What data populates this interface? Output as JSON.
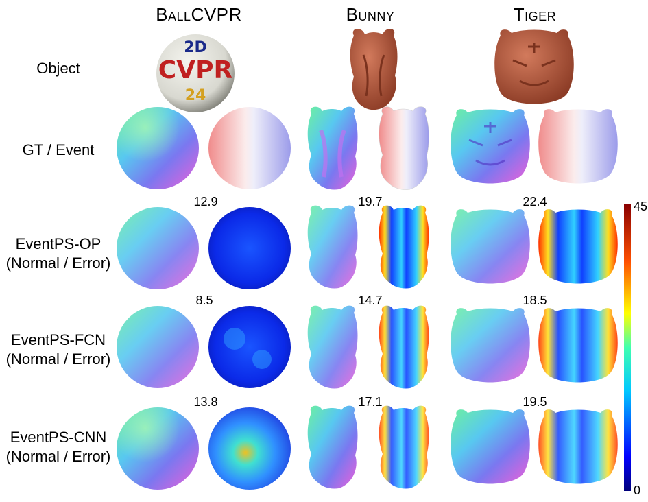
{
  "columns": [
    "BallCVPR",
    "Bunny",
    "Tiger"
  ],
  "rows": {
    "object": "Object",
    "gt_event": "GT / Event",
    "op": {
      "line1": "EventPS-OP",
      "line2": "(Normal / Error)"
    },
    "fcn": {
      "line1": "EventPS-FCN",
      "line2": "(Normal / Error)"
    },
    "cnn": {
      "line1": "EventPS-CNN",
      "line2": "(Normal / Error)"
    }
  },
  "ball_text": {
    "top": "2D",
    "middle": "CVPR",
    "bottom": "24"
  },
  "errors": {
    "op": {
      "ball": "12.9",
      "bunny": "19.7",
      "tiger": "22.4"
    },
    "fcn": {
      "ball": "8.5",
      "bunny": "14.7",
      "tiger": "18.5"
    },
    "cnn": {
      "ball": "13.8",
      "bunny": "17.1",
      "tiger": "19.5"
    }
  },
  "colorbar": {
    "max": "45",
    "min": "0"
  }
}
